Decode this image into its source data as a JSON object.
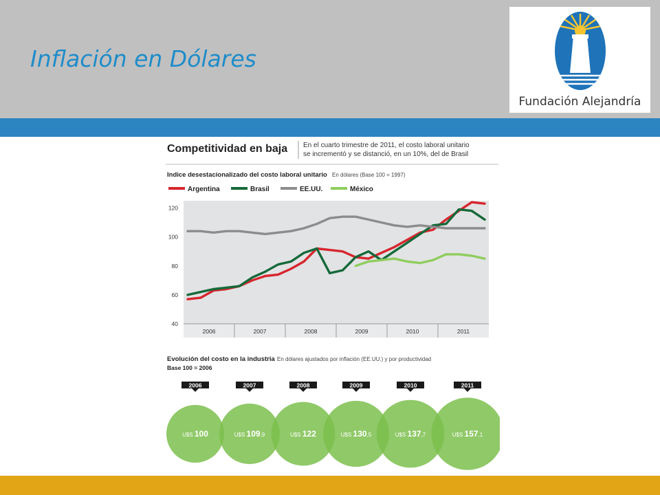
{
  "slide": {
    "title": "Inflación en Dólares",
    "logo_text": "Fundación Alejandría"
  },
  "colors": {
    "header_bg": "#c0c0c0",
    "title": "#1f8cc9",
    "blue_band": "#2c84c0",
    "gold_band": "#e2a516",
    "bubble": "#7dc04d"
  },
  "infographic": {
    "headline": "Competitividad en baja",
    "summary_line1": "En el cuarto trimestre de 2011, el costo laboral unitario",
    "summary_line2": "se incrementó y se distanció, en un 10%, del de Brasil"
  },
  "chart_data": [
    {
      "type": "line",
      "title": "Indice desestacionalizado del costo laboral unitario",
      "subtitle": "En dólares (Base 100 = 1997)",
      "categories": [
        "2006",
        "2007",
        "2008",
        "2009",
        "2010",
        "2011"
      ],
      "ylim": [
        40,
        125
      ],
      "yticks": [
        40,
        60,
        80,
        100,
        120
      ],
      "grid": false,
      "legend": "top-left",
      "x": [
        2006.0,
        2006.25,
        2006.5,
        2006.75,
        2007.0,
        2007.25,
        2007.5,
        2007.75,
        2008.0,
        2008.25,
        2008.5,
        2008.75,
        2009.0,
        2009.25,
        2009.5,
        2009.75,
        2010.0,
        2010.25,
        2010.5,
        2010.75,
        2011.0,
        2011.25,
        2011.5,
        2011.75
      ],
      "series": [
        {
          "name": "Argentina",
          "color": "#d7262e",
          "values": [
            57,
            58,
            63,
            64,
            66,
            70,
            73,
            74,
            78,
            83,
            92,
            91,
            90,
            86,
            85,
            89,
            93,
            98,
            103,
            105,
            112,
            118,
            124,
            123
          ]
        },
        {
          "name": "Brasil",
          "color": "#15693a",
          "values": [
            60,
            62,
            64,
            65,
            66,
            72,
            76,
            81,
            83,
            89,
            92,
            75,
            77,
            86,
            90,
            84,
            90,
            96,
            102,
            108,
            109,
            119,
            118,
            112
          ]
        },
        {
          "name": "EE.UU.",
          "color": "#8c8c8c",
          "values": [
            104,
            104,
            103,
            104,
            104,
            103,
            102,
            103,
            104,
            106,
            109,
            113,
            114,
            114,
            112,
            110,
            108,
            107,
            108,
            107,
            106,
            106,
            106,
            106
          ]
        },
        {
          "name": "México",
          "color": "#8fcd5e",
          "values": [
            null,
            null,
            null,
            null,
            null,
            null,
            null,
            null,
            null,
            null,
            null,
            null,
            null,
            80,
            83,
            84,
            85,
            83,
            82,
            84,
            88,
            88,
            87,
            85
          ]
        }
      ]
    },
    {
      "type": "bubble",
      "title": "Evolución del costo en la industria",
      "subtitle": "En dólares ajustados por inflación (EE.UU.) y por productividad",
      "base_note": "Base 100 = 2006",
      "categories": [
        "2006",
        "2007",
        "2008",
        "2009",
        "2010",
        "2011"
      ],
      "currency": "U$S",
      "values": [
        100,
        109.9,
        122,
        130.5,
        137.7,
        157.1
      ],
      "labels_int": [
        "100",
        "109",
        "122",
        "130",
        "137",
        "157"
      ],
      "labels_dec": [
        "",
        ",9",
        "",
        ",5",
        ",7",
        ",1"
      ]
    }
  ]
}
